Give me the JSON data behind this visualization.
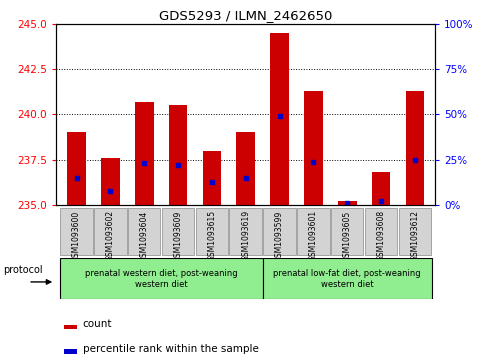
{
  "title": "GDS5293 / ILMN_2462650",
  "samples": [
    "GSM1093600",
    "GSM1093602",
    "GSM1093604",
    "GSM1093609",
    "GSM1093615",
    "GSM1093619",
    "GSM1093599",
    "GSM1093601",
    "GSM1093605",
    "GSM1093608",
    "GSM1093612"
  ],
  "count_values": [
    239.0,
    237.6,
    240.7,
    240.5,
    238.0,
    239.0,
    244.5,
    241.3,
    235.2,
    236.8,
    241.3
  ],
  "percentile_values": [
    15,
    8,
    23,
    22,
    13,
    15,
    49,
    24,
    1,
    2,
    25
  ],
  "ylim_left": [
    235,
    245
  ],
  "ylim_right": [
    0,
    100
  ],
  "yticks_left": [
    235,
    237.5,
    240,
    242.5,
    245
  ],
  "yticks_right": [
    0,
    25,
    50,
    75,
    100
  ],
  "bar_color": "#cc0000",
  "percentile_color": "#0000cc",
  "group1_label": "prenatal western diet, post-weaning\nwestern diet",
  "group2_label": "prenatal low-fat diet, post-weaning\nwestern diet",
  "protocol_label": "protocol",
  "legend_count": "count",
  "legend_percentile": "percentile rank within the sample",
  "bar_width": 0.55,
  "base_value": 235,
  "bg_color": "#d3d3d3",
  "group_color": "#90ee90"
}
